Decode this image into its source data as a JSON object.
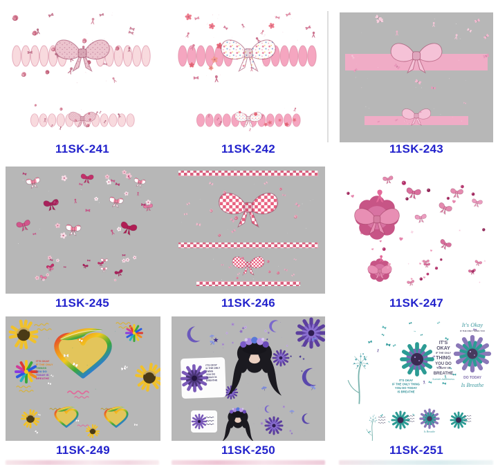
{
  "page": {
    "background": "#ffffff"
  },
  "colors": {
    "label_blue": "#2222cc",
    "cell_gray": "#b7b7b7",
    "awareness_pink": "#e8889f",
    "awareness_teal": "#2c9b94",
    "awareness_purple": "#7a5ab8",
    "rainbow": [
      "#e03a30",
      "#f08c1e",
      "#f2c81e",
      "#3aa83a",
      "#2a7ae0",
      "#8a3ae0"
    ]
  },
  "products": [
    {
      "code": "11SK-241"
    },
    {
      "code": "11SK-242"
    },
    {
      "code": "11SK-243"
    },
    {
      "code": "11SK-245"
    },
    {
      "code": "11SK-246"
    },
    {
      "code": "11SK-247"
    },
    {
      "code": "11SK-249"
    },
    {
      "code": "11SK-250"
    },
    {
      "code": "11SK-251"
    }
  ],
  "texts": {
    "sk249": {
      "flower_lines": [
        "IT'S OKAY",
        "IF THE ONLY",
        "THINGS",
        "YOU DO",
        "TODAY IS",
        "BREATHE"
      ]
    },
    "sk250": {
      "card_lines": [
        "IT'S OKAY",
        "IF THE ONLY",
        "THING",
        "YOU DO",
        "TODAY IS",
        "BREATHE"
      ]
    },
    "sk251": {
      "stack": [
        "IT'S",
        "OKAY",
        "IF THE ONLY",
        "THING",
        "YOU DO",
        "TODAY IS",
        "BREATHE"
      ],
      "awareness": "Suicide Awareness",
      "script_okay": "It's Okay",
      "caps_line": "IF THE ONLY THING YOU",
      "do_today": "DO TODAY",
      "is_breathe": "Is Breathe",
      "dandelion_lines": [
        "IT'S OKAY",
        "IF THE ONLY THING",
        "YOU DO TODAY",
        "IS BREATHE"
      ]
    }
  }
}
